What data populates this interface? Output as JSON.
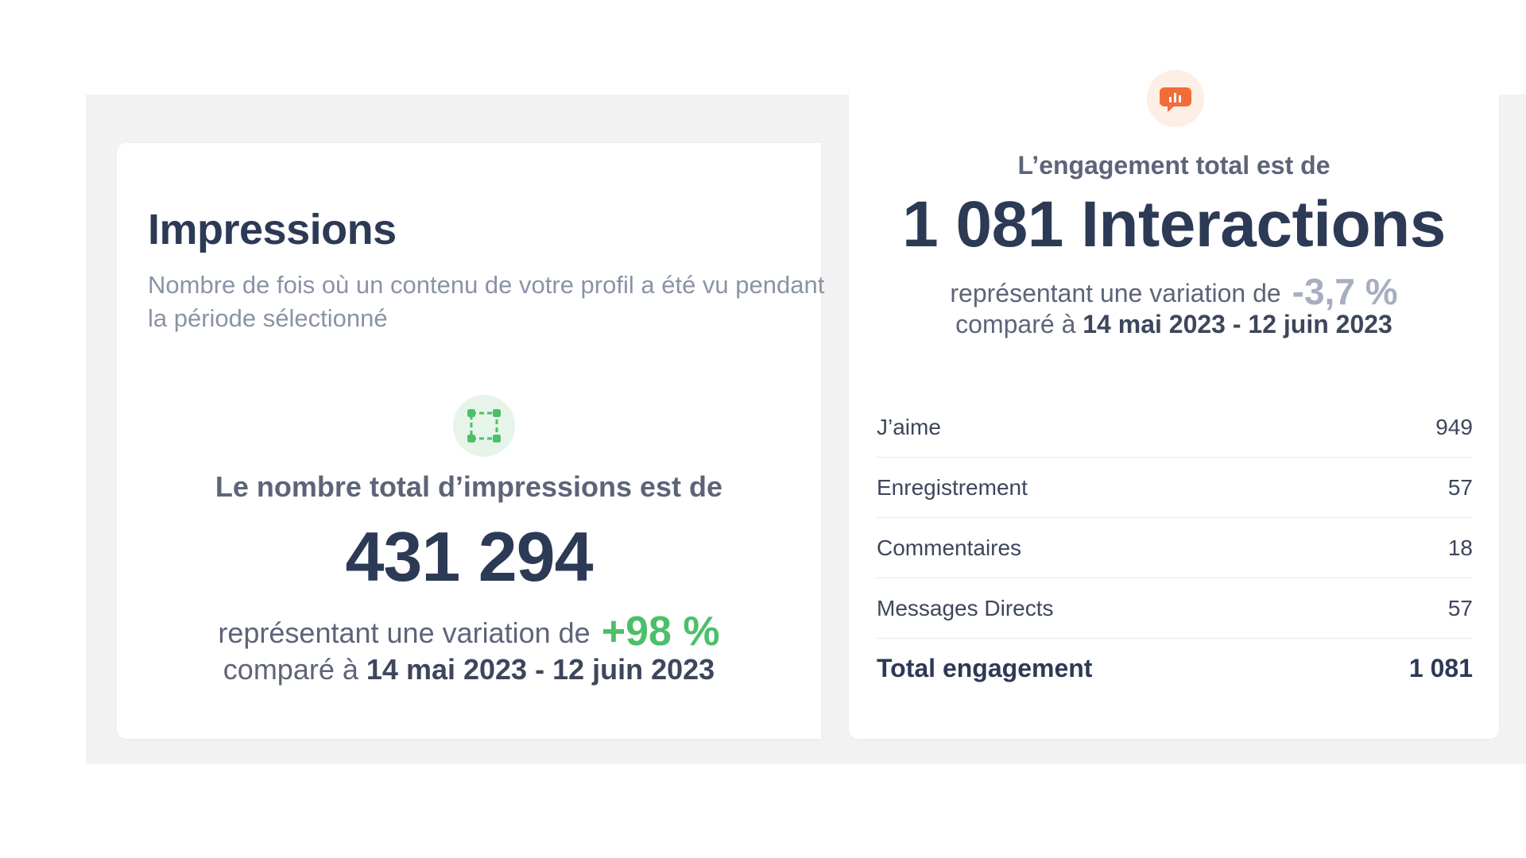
{
  "impressions": {
    "title": "Impressions",
    "description": "Nombre de fois où un contenu de votre profil a été vu pendant la période sélectionné",
    "lead": "Le nombre total d’impressions est de",
    "value": "431 294",
    "variation_label": "représentant une variation de",
    "variation_value": "+98 %",
    "compare_label": "comparé à",
    "compare_range": "14 mai 2023 - 12 juin 2023",
    "icon": "selection-frame-icon",
    "accent_color": "#4cbf68"
  },
  "engagement": {
    "lead": "L’engagement total est de",
    "value": "1 081 Interactions",
    "variation_label": "représentant une variation de",
    "variation_value": "-3,7 %",
    "compare_label": "comparé à",
    "compare_range": "14 mai 2023 - 12 juin 2023",
    "icon": "chat-bubble-chart-icon",
    "accent_color": "#f26b3a",
    "rows": [
      {
        "label": "J’aime",
        "value": "949"
      },
      {
        "label": "Enregistrement",
        "value": "57"
      },
      {
        "label": "Commentaires",
        "value": "18"
      },
      {
        "label": "Messages Directs",
        "value": "57"
      }
    ],
    "total": {
      "label": "Total engagement",
      "value": "1 081"
    }
  }
}
